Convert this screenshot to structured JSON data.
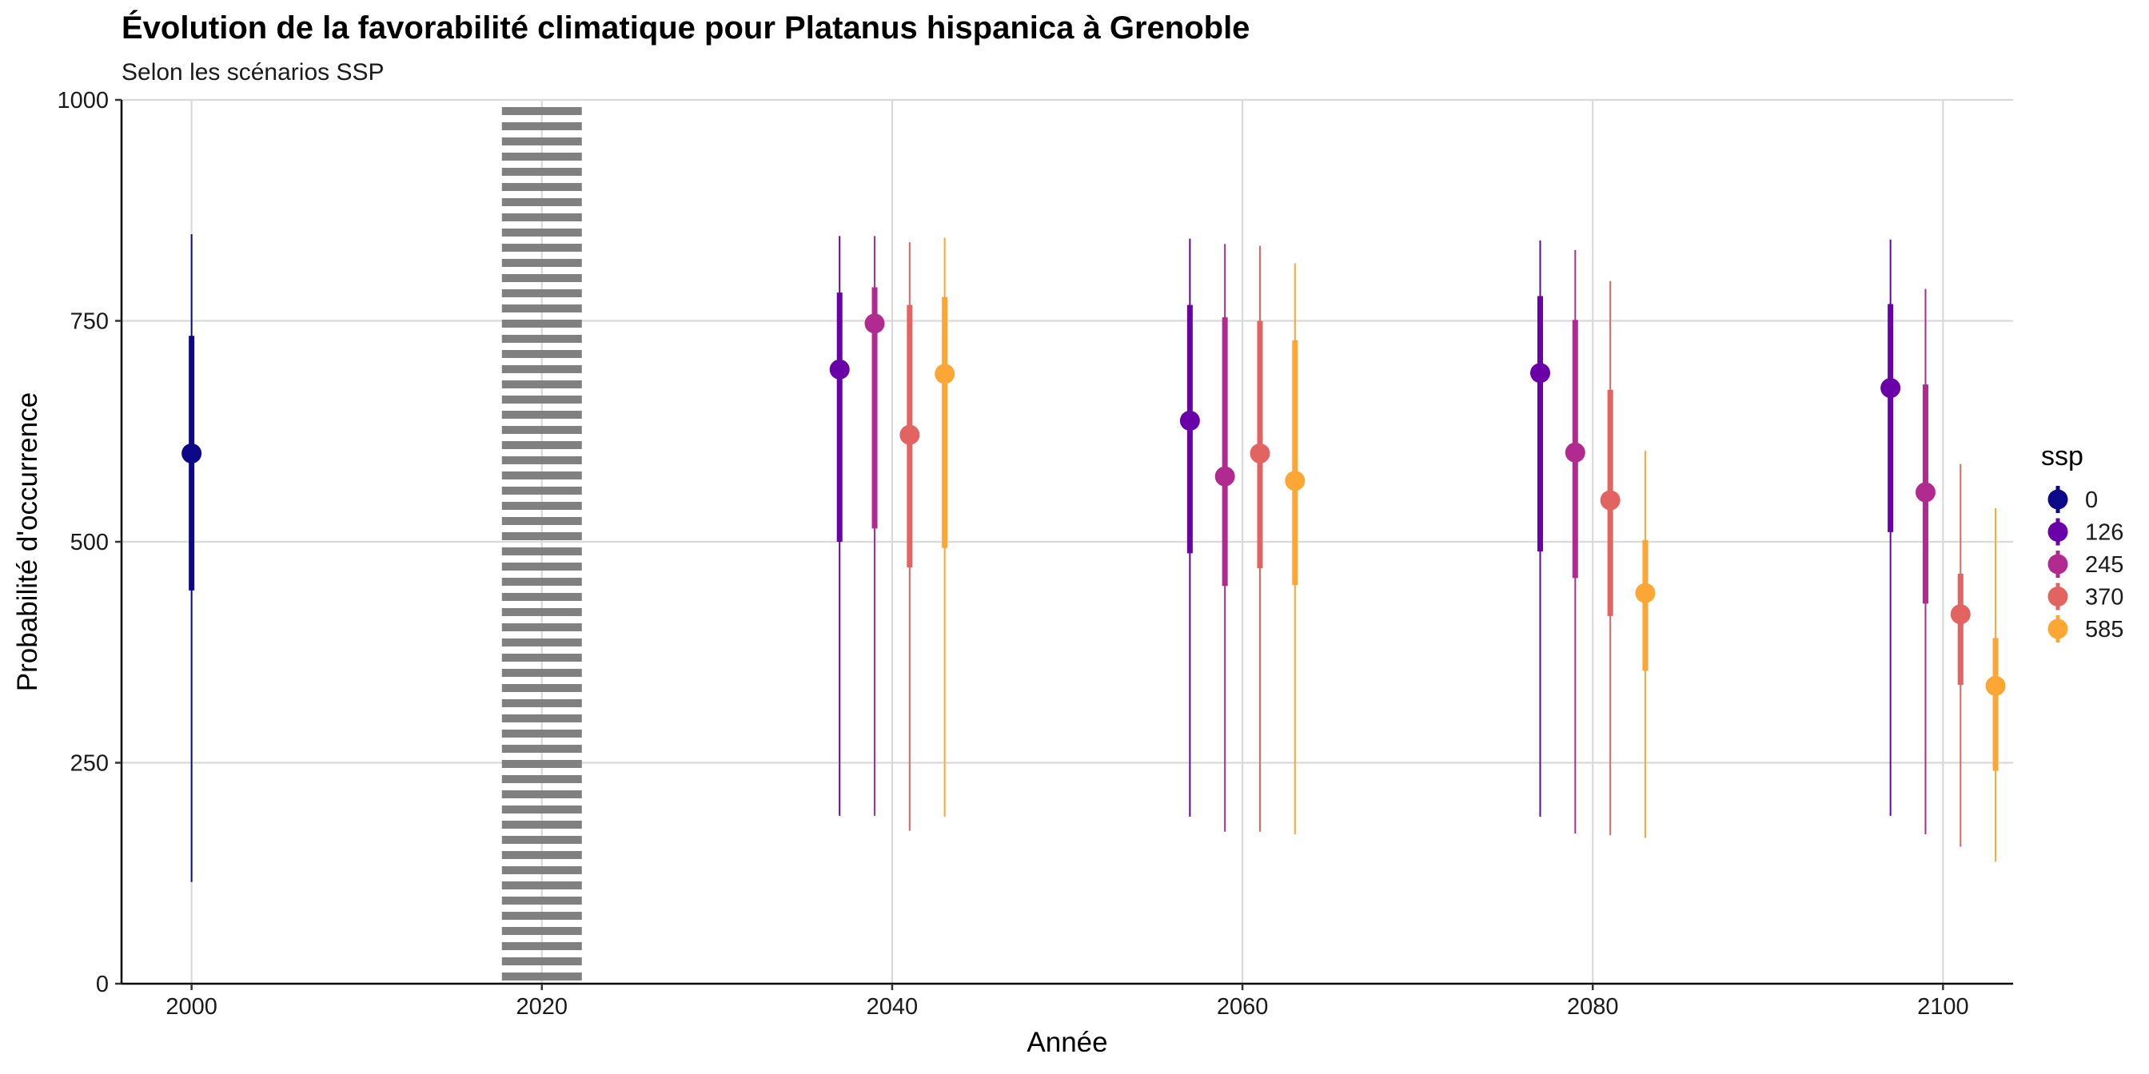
{
  "chart_data": {
    "type": "scatter",
    "title": "Évolution de la favorabilité climatique pour Platanus hispanica à Grenoble",
    "subtitle": "Selon les scénarios SSP",
    "xlabel": "Année",
    "ylabel": "Probabilité d'occurrence",
    "xlim": [
      1996,
      2104
    ],
    "ylim": [
      0,
      1000
    ],
    "x_ticks": [
      2000,
      2020,
      2040,
      2060,
      2080,
      2100
    ],
    "x_tick_labels": [
      "2000",
      "2020",
      "2040",
      "2060",
      "2080",
      "2100"
    ],
    "y_ticks": [
      0,
      250,
      500,
      750,
      1000
    ],
    "y_tick_labels": [
      "0",
      "250",
      "500",
      "750",
      "1000"
    ],
    "grid": true,
    "reference_line": {
      "x": 2020,
      "style": "dotted",
      "color": "#808080"
    },
    "legend": {
      "title": "ssp",
      "position": "right",
      "entries": [
        {
          "label": "0",
          "color": "#0D0887"
        },
        {
          "label": "126",
          "color": "#6A00A8"
        },
        {
          "label": "245",
          "color": "#B12A90"
        },
        {
          "label": "370",
          "color": "#E16462"
        },
        {
          "label": "585",
          "color": "#FCA636"
        }
      ]
    },
    "series": [
      {
        "name": "0",
        "color": "#0D0887",
        "points": [
          {
            "x": 2000,
            "y": 600,
            "inner": [
              445,
              733
            ],
            "outer": [
              115,
              848
            ]
          }
        ]
      },
      {
        "name": "126",
        "color": "#6A00A8",
        "points": [
          {
            "x": 2037,
            "y": 695,
            "inner": [
              500,
              782
            ],
            "outer": [
              190,
              846
            ]
          },
          {
            "x": 2057,
            "y": 637,
            "inner": [
              487,
              768
            ],
            "outer": [
              189,
              843
            ]
          },
          {
            "x": 2077,
            "y": 691,
            "inner": [
              489,
              778
            ],
            "outer": [
              189,
              841
            ]
          },
          {
            "x": 2097,
            "y": 674,
            "inner": [
              511,
              769
            ],
            "outer": [
              190,
              842
            ]
          }
        ]
      },
      {
        "name": "245",
        "color": "#B12A90",
        "points": [
          {
            "x": 2039,
            "y": 747,
            "inner": [
              515,
              788
            ],
            "outer": [
              190,
              846
            ]
          },
          {
            "x": 2059,
            "y": 574,
            "inner": [
              450,
              754
            ],
            "outer": [
              172,
              837
            ]
          },
          {
            "x": 2079,
            "y": 601,
            "inner": [
              459,
              751
            ],
            "outer": [
              170,
              830
            ]
          },
          {
            "x": 2099,
            "y": 556,
            "inner": [
              430,
              678
            ],
            "outer": [
              169,
              786
            ]
          }
        ]
      },
      {
        "name": "370",
        "color": "#E16462",
        "points": [
          {
            "x": 2041,
            "y": 621,
            "inner": [
              471,
              768
            ],
            "outer": [
              173,
              839
            ]
          },
          {
            "x": 2061,
            "y": 600,
            "inner": [
              470,
              750
            ],
            "outer": [
              172,
              835
            ]
          },
          {
            "x": 2081,
            "y": 547,
            "inner": [
              416,
              672
            ],
            "outer": [
              168,
              795
            ]
          },
          {
            "x": 2101,
            "y": 418,
            "inner": [
              338,
              464
            ],
            "outer": [
              155,
              588
            ]
          }
        ]
      },
      {
        "name": "585",
        "color": "#FCA636",
        "points": [
          {
            "x": 2043,
            "y": 690,
            "inner": [
              493,
              777
            ],
            "outer": [
              189,
              844
            ]
          },
          {
            "x": 2063,
            "y": 569,
            "inner": [
              451,
              728
            ],
            "outer": [
              169,
              815
            ]
          },
          {
            "x": 2083,
            "y": 442,
            "inner": [
              354,
              502
            ],
            "outer": [
              165,
              603
            ]
          },
          {
            "x": 2103,
            "y": 337,
            "inner": [
              241,
              391
            ],
            "outer": [
              138,
              538
            ]
          }
        ]
      }
    ]
  }
}
